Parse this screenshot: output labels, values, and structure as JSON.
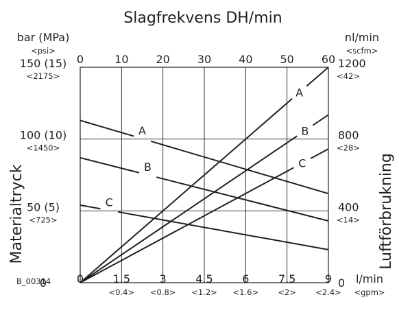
{
  "chart_data": {
    "type": "line",
    "title": "Slagfrekvens DH/min",
    "figure_id": "B_00314",
    "left_axis": {
      "label": "Materialtryck",
      "unit": "bar (MPa)",
      "unit_alt": "<psi>",
      "range": [
        0,
        150
      ],
      "ticks": [
        {
          "value": 0,
          "label": "0",
          "sub": ""
        },
        {
          "value": 50,
          "label": "50 (5)",
          "sub": "<725>"
        },
        {
          "value": 100,
          "label": "100 (10)",
          "sub": "<1450>"
        },
        {
          "value": 150,
          "label": "150 (15)",
          "sub": "<2175>"
        }
      ]
    },
    "right_axis": {
      "label": "Luftförbrukning",
      "unit": "nl/min",
      "unit_alt": "<scfm>",
      "range": [
        0,
        1200
      ],
      "ticks": [
        {
          "value": 0,
          "label": "0",
          "sub": ""
        },
        {
          "value": 400,
          "label": "400",
          "sub": "<14>"
        },
        {
          "value": 800,
          "label": "800",
          "sub": "<28>"
        },
        {
          "value": 1200,
          "label": "1200",
          "sub": "<42>"
        }
      ]
    },
    "top_axis": {
      "label": "Slagfrekvens DH/min",
      "range": [
        0,
        60
      ],
      "ticks": [
        {
          "value": 0,
          "label": "0"
        },
        {
          "value": 10,
          "label": "10"
        },
        {
          "value": 20,
          "label": "20"
        },
        {
          "value": 30,
          "label": "30"
        },
        {
          "value": 40,
          "label": "40"
        },
        {
          "value": 50,
          "label": "50"
        },
        {
          "value": 60,
          "label": "60"
        }
      ]
    },
    "bottom_axis": {
      "unit": "l/min",
      "unit_alt": "<gpm>",
      "range": [
        0,
        9
      ],
      "ticks": [
        {
          "value": 0,
          "label": "0",
          "sub": ""
        },
        {
          "value": 1.5,
          "label": "1.5",
          "sub": "<0.4>"
        },
        {
          "value": 3,
          "label": "3",
          "sub": "<0.8>"
        },
        {
          "value": 4.5,
          "label": "4.5",
          "sub": "<1.2>"
        },
        {
          "value": 6,
          "label": "6",
          "sub": "<1.6>"
        },
        {
          "value": 7.5,
          "label": "7.5",
          "sub": "<2>"
        },
        {
          "value": 9,
          "label": "9",
          "sub": "<2.4>"
        }
      ]
    },
    "gridlines": {
      "vertical_at_top_values": [
        10,
        20,
        30,
        40,
        50
      ],
      "horizontal_at_left_values": [
        50,
        100
      ]
    },
    "pressure_lines": [
      {
        "name": "A",
        "flow": [
          0,
          9
        ],
        "pressure": [
          113,
          62
        ]
      },
      {
        "name": "B",
        "flow": [
          0,
          9
        ],
        "pressure": [
          87,
          43
        ]
      },
      {
        "name": "C",
        "flow": [
          0,
          9
        ],
        "pressure": [
          54,
          23
        ]
      }
    ],
    "air_lines": [
      {
        "name": "A",
        "flow": [
          0,
          9
        ],
        "air": [
          0,
          1200
        ]
      },
      {
        "name": "B",
        "flow": [
          0,
          9
        ],
        "air": [
          0,
          935
        ]
      },
      {
        "name": "C",
        "flow": [
          0,
          9
        ],
        "air": [
          0,
          745
        ]
      }
    ]
  }
}
